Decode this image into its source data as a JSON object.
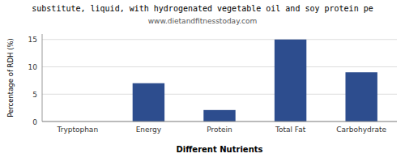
{
  "chart_data": {
    "type": "bar",
    "title": "substitute, liquid, with hydrogenated vegetable oil and soy protein pe",
    "subtitle": "www.dietandfitnesstoday.com",
    "categories": [
      "Tryptophan",
      "Energy",
      "Protein",
      "Total Fat",
      "Carbohydrate"
    ],
    "values": [
      0,
      7.0,
      2.1,
      15.0,
      9.0
    ],
    "color": "#2d4d8e",
    "xlabel": "Different Nutrients",
    "ylabel": "Percentage of RDH (%)",
    "ylim": [
      0,
      16
    ],
    "yticks": [
      0,
      5,
      10,
      15
    ],
    "grid": true
  }
}
